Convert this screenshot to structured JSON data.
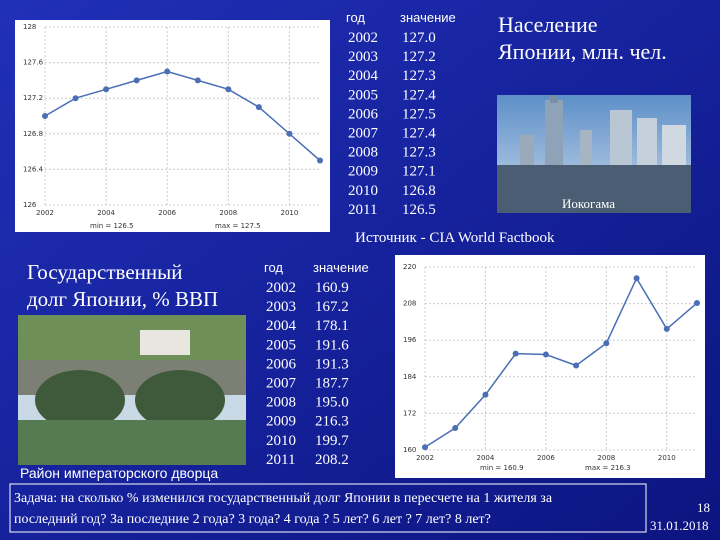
{
  "chart_data": [
    {
      "type": "line",
      "x": [
        2002,
        2003,
        2004,
        2005,
        2006,
        2007,
        2008,
        2009,
        2010,
        2011
      ],
      "series": [
        {
          "color": "#4a6fb5",
          "values": [
            127.0,
            127.2,
            127.3,
            127.4,
            127.5,
            127.4,
            127.3,
            127.1,
            126.8,
            126.5
          ]
        }
      ],
      "xlim": [
        2002,
        2011
      ],
      "xticks": [
        2002,
        2004,
        2006,
        2008,
        2010
      ],
      "ylim": [
        126,
        128
      ],
      "yticks": [
        126,
        126.4,
        126.8,
        127.2,
        127.6,
        128
      ],
      "grid": true,
      "annotations": [
        "min = 126.5",
        "max = 127.5"
      ]
    },
    {
      "type": "line",
      "x": [
        2002,
        2003,
        2004,
        2005,
        2006,
        2007,
        2008,
        2009,
        2010,
        2011
      ],
      "series": [
        {
          "color": "#4a6fb5",
          "values": [
            160.9,
            167.2,
            178.1,
            191.6,
            191.3,
            187.7,
            195.0,
            216.3,
            199.7,
            208.2
          ]
        }
      ],
      "xlim": [
        2002,
        2011
      ],
      "xticks": [
        2002,
        2004,
        2006,
        2008,
        2010
      ],
      "ylim": [
        160,
        220
      ],
      "yticks": [
        160,
        172,
        184,
        196,
        208,
        220
      ],
      "grid": true,
      "annotations": [
        "min = 160.9",
        "max = 216.3"
      ]
    }
  ],
  "population": {
    "title_lines": [
      "Население",
      "Японии, млн. чел."
    ],
    "photo_caption": "Иокогама",
    "source": "Источник - CIA World Factbook",
    "table": {
      "header": [
        "год",
        "значение"
      ],
      "rows": [
        [
          "2002",
          "127.0"
        ],
        [
          "2003",
          "127.2"
        ],
        [
          "2004",
          "127.3"
        ],
        [
          "2005",
          "127.4"
        ],
        [
          "2006",
          "127.5"
        ],
        [
          "2007",
          "127.4"
        ],
        [
          "2008",
          "127.3"
        ],
        [
          "2009",
          "127.1"
        ],
        [
          "2010",
          "126.8"
        ],
        [
          "2011",
          "126.5"
        ]
      ]
    }
  },
  "debt": {
    "title_lines": [
      "Государственный",
      "долг Японии, % ВВП"
    ],
    "photo_caption": "Район императорского дворца",
    "table": {
      "header": [
        "год",
        "значение"
      ],
      "rows": [
        [
          "2002",
          "160.9"
        ],
        [
          "2003",
          "167.2"
        ],
        [
          "2004",
          "178.1"
        ],
        [
          "2005",
          "191.6"
        ],
        [
          "2006",
          "191.3"
        ],
        [
          "2007",
          "187.7"
        ],
        [
          "2008",
          "195.0"
        ],
        [
          "2009",
          "216.3"
        ],
        [
          "2010",
          "199.7"
        ],
        [
          "2011",
          "208.2"
        ]
      ]
    }
  },
  "task": {
    "lines": [
      "Задача: на сколько % изменился государственный долг Японии в пересчете на 1 жителя за",
      "последний год? За последние 2 года?  3 года?  4 года ?  5 лет?  6 лет ?  7 лет?  8 лет?"
    ]
  },
  "footer": {
    "page": "18",
    "date": "31.01.2018"
  }
}
